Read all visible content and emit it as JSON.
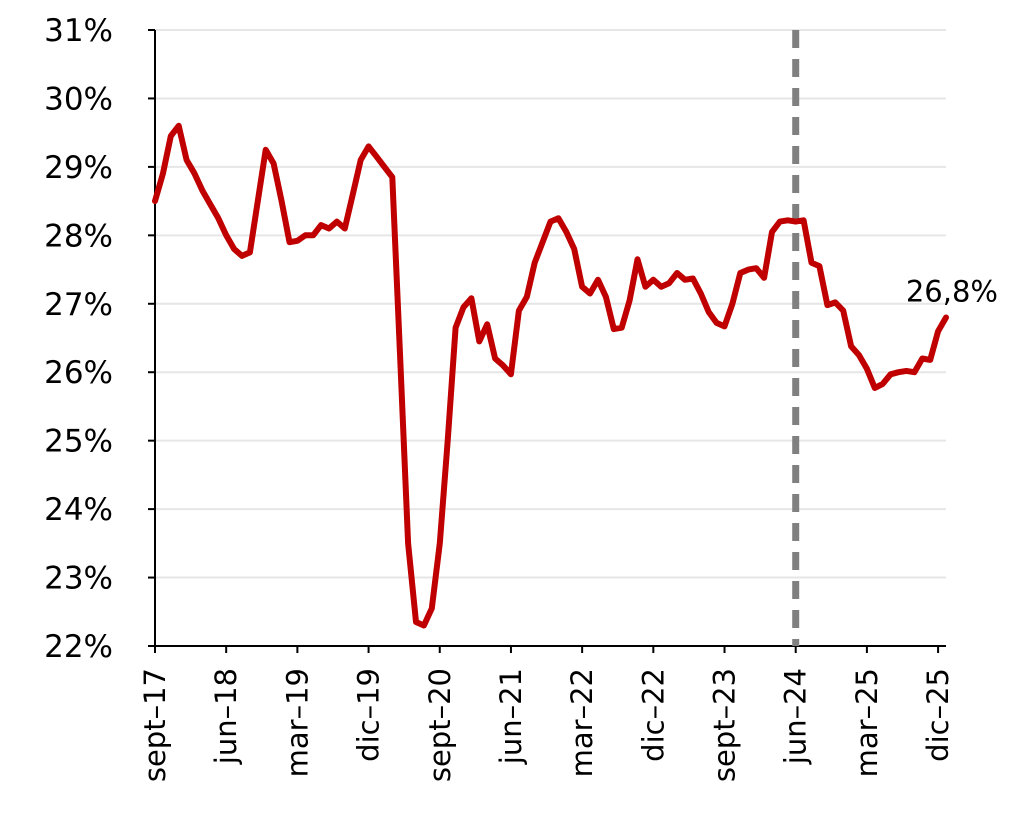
{
  "chart_data": {
    "type": "line",
    "title": "",
    "xlabel": "",
    "ylabel": "",
    "y_unit": "%",
    "ylim": [
      22,
      31
    ],
    "y_ticks": [
      22,
      23,
      24,
      25,
      26,
      27,
      28,
      29,
      30,
      31
    ],
    "y_tick_labels": [
      "22%",
      "23%",
      "24%",
      "25%",
      "26%",
      "27%",
      "28%",
      "29%",
      "30%",
      "31%"
    ],
    "grid": "horizontal",
    "legend": "none",
    "x_tick_labels": [
      {
        "date": "2017-09",
        "label": "sept–17"
      },
      {
        "date": "2018-06",
        "label": "jun–18"
      },
      {
        "date": "2019-03",
        "label": "mar–19"
      },
      {
        "date": "2019-12",
        "label": "dic–19"
      },
      {
        "date": "2020-09",
        "label": "sept–20"
      },
      {
        "date": "2021-06",
        "label": "jun–21"
      },
      {
        "date": "2022-03",
        "label": "mar–22"
      },
      {
        "date": "2022-12",
        "label": "dic–22"
      },
      {
        "date": "2023-09",
        "label": "sept–23"
      },
      {
        "date": "2024-06",
        "label": "jun–24"
      },
      {
        "date": "2025-03",
        "label": "mar–25"
      },
      {
        "date": "2025-12",
        "label": "dic–25"
      }
    ],
    "colors": {
      "series": "#c00000",
      "marker_line": "#808080",
      "grid": "#e6e6e6",
      "axis": "#000000"
    },
    "vertical_marker": {
      "date": "2024-06",
      "style": "dashed"
    },
    "end_label": "26,8%",
    "series": [
      {
        "values": [
          [
            "2017-09",
            28.5
          ],
          [
            "2017-10",
            28.9
          ],
          [
            "2017-11",
            29.45
          ],
          [
            "2017-12",
            29.6
          ],
          [
            "2018-01",
            29.1
          ],
          [
            "2018-02",
            28.9
          ],
          [
            "2018-03",
            28.65
          ],
          [
            "2018-04",
            28.45
          ],
          [
            "2018-05",
            28.25
          ],
          [
            "2018-06",
            28.0
          ],
          [
            "2018-07",
            27.8
          ],
          [
            "2018-08",
            27.7
          ],
          [
            "2018-09",
            27.75
          ],
          [
            "2018-10",
            28.5
          ],
          [
            "2018-11",
            29.25
          ],
          [
            "2018-12",
            29.05
          ],
          [
            "2019-01",
            28.5
          ],
          [
            "2019-02",
            27.9
          ],
          [
            "2019-03",
            27.92
          ],
          [
            "2019-04",
            28.0
          ],
          [
            "2019-05",
            28.0
          ],
          [
            "2019-06",
            28.15
          ],
          [
            "2019-07",
            28.1
          ],
          [
            "2019-08",
            28.2
          ],
          [
            "2019-09",
            28.1
          ],
          [
            "2019-10",
            28.6
          ],
          [
            "2019-11",
            29.1
          ],
          [
            "2019-12",
            29.3
          ],
          [
            "2020-01",
            29.15
          ],
          [
            "2020-02",
            29.0
          ],
          [
            "2020-03",
            28.85
          ],
          [
            "2020-04",
            26.2
          ],
          [
            "2020-05",
            23.5
          ],
          [
            "2020-06",
            22.35
          ],
          [
            "2020-07",
            22.3
          ],
          [
            "2020-08",
            22.55
          ],
          [
            "2020-09",
            23.5
          ],
          [
            "2020-10",
            25.0
          ],
          [
            "2020-11",
            26.65
          ],
          [
            "2020-12",
            26.95
          ],
          [
            "2021-01",
            27.08
          ],
          [
            "2021-02",
            26.45
          ],
          [
            "2021-03",
            26.7
          ],
          [
            "2021-04",
            26.2
          ],
          [
            "2021-05",
            26.1
          ],
          [
            "2021-06",
            25.97
          ],
          [
            "2021-07",
            26.9
          ],
          [
            "2021-08",
            27.1
          ],
          [
            "2021-09",
            27.6
          ],
          [
            "2021-10",
            27.9
          ],
          [
            "2021-11",
            28.2
          ],
          [
            "2021-12",
            28.25
          ],
          [
            "2022-01",
            28.05
          ],
          [
            "2022-02",
            27.8
          ],
          [
            "2022-03",
            27.25
          ],
          [
            "2022-04",
            27.15
          ],
          [
            "2022-05",
            27.35
          ],
          [
            "2022-06",
            27.1
          ],
          [
            "2022-07",
            26.63
          ],
          [
            "2022-08",
            26.65
          ],
          [
            "2022-09",
            27.05
          ],
          [
            "2022-10",
            27.65
          ],
          [
            "2022-11",
            27.25
          ],
          [
            "2022-12",
            27.35
          ],
          [
            "2023-01",
            27.25
          ],
          [
            "2023-02",
            27.3
          ],
          [
            "2023-03",
            27.45
          ],
          [
            "2023-04",
            27.35
          ],
          [
            "2023-05",
            27.37
          ],
          [
            "2023-06",
            27.15
          ],
          [
            "2023-07",
            26.88
          ],
          [
            "2023-08",
            26.72
          ],
          [
            "2023-09",
            26.67
          ],
          [
            "2023-10",
            27.0
          ],
          [
            "2023-11",
            27.45
          ],
          [
            "2023-12",
            27.5
          ],
          [
            "2024-01",
            27.52
          ],
          [
            "2024-02",
            27.38
          ],
          [
            "2024-03",
            28.05
          ],
          [
            "2024-04",
            28.2
          ],
          [
            "2024-05",
            28.22
          ],
          [
            "2024-06",
            28.2
          ],
          [
            "2024-07",
            28.22
          ],
          [
            "2024-08",
            27.6
          ],
          [
            "2024-09",
            27.55
          ],
          [
            "2024-10",
            26.98
          ],
          [
            "2024-11",
            27.02
          ],
          [
            "2024-12",
            26.9
          ],
          [
            "2025-01",
            26.38
          ],
          [
            "2025-02",
            26.25
          ],
          [
            "2025-03",
            26.05
          ],
          [
            "2025-04",
            25.77
          ],
          [
            "2025-05",
            25.83
          ],
          [
            "2025-06",
            25.97
          ],
          [
            "2025-07",
            26.0
          ],
          [
            "2025-08",
            26.02
          ],
          [
            "2025-09",
            26.0
          ],
          [
            "2025-10",
            26.2
          ],
          [
            "2025-11",
            26.18
          ],
          [
            "2025-12",
            26.6
          ],
          [
            "2026-01",
            26.8
          ]
        ]
      }
    ]
  }
}
